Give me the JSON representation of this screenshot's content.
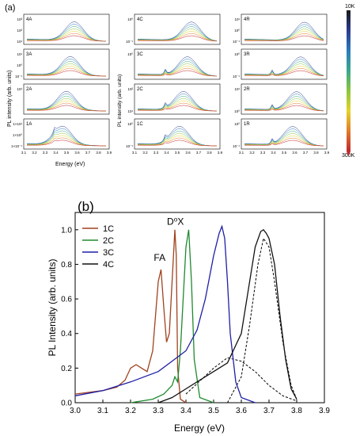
{
  "panel_a": {
    "label": "(a)",
    "xlabel": "Energy (eV)",
    "ylabel_left": "PL intensity (arb. units)",
    "ylabel_mid": "PL intensity (arb. units)",
    "colorbar": {
      "top_label": "10K",
      "bottom_label": "300K",
      "colors": [
        "#1a1a1a",
        "#2b3b8f",
        "#2a7bbd",
        "#3aa88a",
        "#8cc63f",
        "#e6d22a",
        "#e07b2a",
        "#c1272d"
      ]
    },
    "subplots": [
      {
        "id": "4A",
        "ticks_y": [
          "10³",
          "10²",
          "10¹"
        ]
      },
      {
        "id": "3A",
        "ticks_y": [
          "10¹",
          "10⁰",
          "10⁻¹"
        ]
      },
      {
        "id": "2A",
        "ticks_y": [
          "10¹"
        ]
      },
      {
        "id": "1A",
        "ticks_y": [
          "1×10¹",
          "1×10⁰",
          "1×10⁻¹"
        ]
      },
      {
        "id": "4C",
        "ticks_y": [
          "10⁰",
          "10⁻¹"
        ]
      },
      {
        "id": "3C",
        "ticks_y": [
          "10⁰"
        ]
      },
      {
        "id": "2C",
        "ticks_y": [
          "10²",
          "10¹"
        ]
      },
      {
        "id": "1C",
        "ticks_y": [
          "10⁰",
          "10⁻¹"
        ]
      },
      {
        "id": "4R",
        "ticks_y": [
          "10¹",
          "10⁰",
          "10⁻¹"
        ]
      },
      {
        "id": "3R",
        "ticks_y": [
          "10⁰",
          "10⁻¹"
        ]
      },
      {
        "id": "2R",
        "ticks_y": [
          "10¹",
          "10⁰"
        ]
      },
      {
        "id": "1R",
        "ticks_y": [
          "10⁰",
          "10⁻¹"
        ]
      }
    ],
    "ticks_x": [
      "3.1",
      "3.2",
      "3.3",
      "3.4",
      "3.5",
      "3.6",
      "3.7",
      "3.8",
      "3.9"
    ]
  },
  "chart_data": {
    "type": "line",
    "label": "(b)",
    "xlabel": "Energy (eV)",
    "ylabel": "PL Intensity (arb. units)",
    "xlim": [
      3.0,
      3.9
    ],
    "ylim": [
      0.0,
      1.1
    ],
    "xticks": [
      "3.0",
      "3.1",
      "3.2",
      "3.3",
      "3.4",
      "3.5",
      "3.6",
      "3.7",
      "3.8",
      "3.9"
    ],
    "yticks": [
      "0.0",
      "0.2",
      "0.4",
      "0.6",
      "0.8",
      "1.0"
    ],
    "grid": false,
    "legend": "top-left",
    "annotations": [
      {
        "text": "FA",
        "x": 3.305,
        "y": 0.82
      },
      {
        "text": "D⁰X",
        "x": 3.362,
        "y": 1.03
      }
    ],
    "series": [
      {
        "name": "1C",
        "color": "#a0421f",
        "x": [
          3.0,
          3.05,
          3.1,
          3.15,
          3.18,
          3.2,
          3.22,
          3.24,
          3.26,
          3.28,
          3.29,
          3.3,
          3.31,
          3.32,
          3.33,
          3.34,
          3.35,
          3.36,
          3.365,
          3.37,
          3.38,
          3.4
        ],
        "y": [
          0.05,
          0.06,
          0.07,
          0.09,
          0.13,
          0.2,
          0.22,
          0.2,
          0.18,
          0.3,
          0.5,
          0.7,
          0.77,
          0.55,
          0.35,
          0.4,
          0.7,
          1.0,
          0.85,
          0.2,
          0.02,
          0.0
        ]
      },
      {
        "name": "2C",
        "color": "#1e8a2e",
        "x": [
          3.2,
          3.28,
          3.32,
          3.35,
          3.36,
          3.37,
          3.38,
          3.39,
          3.4,
          3.41,
          3.42,
          3.43,
          3.45,
          3.5
        ],
        "y": [
          0.0,
          0.02,
          0.05,
          0.1,
          0.15,
          0.12,
          0.3,
          0.6,
          0.9,
          1.0,
          0.7,
          0.25,
          0.03,
          0.0
        ]
      },
      {
        "name": "3C",
        "color": "#1f1fa6",
        "x": [
          3.0,
          3.1,
          3.2,
          3.3,
          3.35,
          3.4,
          3.44,
          3.47,
          3.5,
          3.52,
          3.53,
          3.54,
          3.55,
          3.56,
          3.58,
          3.6,
          3.65
        ],
        "y": [
          0.04,
          0.07,
          0.12,
          0.18,
          0.24,
          0.3,
          0.42,
          0.6,
          0.85,
          0.98,
          1.02,
          0.95,
          0.7,
          0.4,
          0.12,
          0.03,
          0.0
        ]
      },
      {
        "name": "4C",
        "color": "#111111",
        "x": [
          3.3,
          3.35,
          3.4,
          3.45,
          3.5,
          3.55,
          3.6,
          3.63,
          3.65,
          3.67,
          3.68,
          3.69,
          3.7,
          3.72,
          3.74,
          3.76,
          3.78,
          3.8
        ],
        "y": [
          0.0,
          0.03,
          0.08,
          0.13,
          0.18,
          0.23,
          0.4,
          0.7,
          0.9,
          0.99,
          1.0,
          0.98,
          0.95,
          0.8,
          0.5,
          0.25,
          0.08,
          0.02
        ]
      }
    ],
    "fit_curves": [
      {
        "x": [
          3.4,
          3.5,
          3.55,
          3.6,
          3.65,
          3.7,
          3.75,
          3.8
        ],
        "y": [
          0.05,
          0.2,
          0.26,
          0.24,
          0.18,
          0.1,
          0.04,
          0.01
        ]
      },
      {
        "x": [
          3.55,
          3.6,
          3.63,
          3.66,
          3.68,
          3.7,
          3.72,
          3.75,
          3.78,
          3.8
        ],
        "y": [
          0.0,
          0.15,
          0.45,
          0.8,
          0.95,
          0.9,
          0.7,
          0.35,
          0.1,
          0.02
        ]
      }
    ]
  }
}
